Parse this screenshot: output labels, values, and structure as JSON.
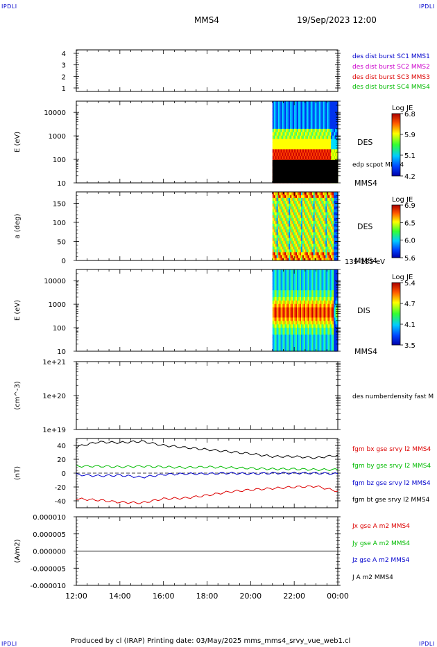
{
  "corners": {
    "tl": "IPDLI",
    "tr": "IPDLI",
    "bl": "IPDLI",
    "br": "IPDLI"
  },
  "header": {
    "spacecraft": "MMS4",
    "datetime": "19/Sep/2023 12:00"
  },
  "footer": {
    "text": "Produced by cl (IRAP)   Printing date: 03/May/2025   mms_mms4_srvy_vue_web1.cl"
  },
  "colors": {
    "red": "#dd0000",
    "green": "#00bb00",
    "blue": "#0000cc",
    "magenta": "#cc00cc",
    "black": "#000000"
  },
  "chart_data": [
    {
      "type": "line",
      "id": "availability",
      "yticks": [
        1,
        2,
        3,
        4
      ],
      "ylim": [
        0.7,
        4.3
      ],
      "legend": [
        {
          "text": "des dist burst SC1 MMS1",
          "color": "#0000cc"
        },
        {
          "text": "des dist burst SC2 MMS2",
          "color": "#cc00cc"
        },
        {
          "text": "des dist burst SC3 MMS3",
          "color": "#dd0000"
        },
        {
          "text": "des dist burst SC4 MMS4",
          "color": "#00bb00"
        }
      ]
    },
    {
      "type": "heatmap",
      "id": "des-energy",
      "ylabel": "E (eV)",
      "scale": "log",
      "yticks": [
        10,
        100,
        1000,
        10000
      ],
      "ytick_labels": [
        "10",
        "100",
        "1000",
        "10000"
      ],
      "ylim": [
        10,
        30000
      ],
      "data_start_hour": 21.0,
      "data_end_hour": 24.0,
      "label": "DES",
      "sublabel": "MMS4",
      "overlay_label": "edp scpot MMS4",
      "colorbar": {
        "title": "Log JE",
        "ticks": [
          "6.8",
          "5.9",
          "5.1",
          "4.2"
        ],
        "min": 4.2,
        "max": 6.8
      },
      "black_band_max_ev": 95
    },
    {
      "type": "heatmap",
      "id": "des-pitch",
      "ylabel": "a (deg)",
      "scale": "linear",
      "yticks": [
        0,
        50,
        100,
        150
      ],
      "ytick_labels": [
        "0",
        "50",
        "100",
        "150"
      ],
      "ylim": [
        0,
        180
      ],
      "data_start_hour": 21.0,
      "data_end_hour": 24.0,
      "label": "DES",
      "sublabel": "MMS4",
      "energy_range": "139-185 eV",
      "colorbar": {
        "title": "Log JE",
        "ticks": [
          "6.9",
          "6.5",
          "6.0",
          "5.6"
        ],
        "min": 5.6,
        "max": 6.9
      }
    },
    {
      "type": "heatmap",
      "id": "dis-energy",
      "ylabel": "E (eV)",
      "scale": "log",
      "yticks": [
        10,
        100,
        1000,
        10000
      ],
      "ytick_labels": [
        "10",
        "100",
        "1000",
        "10000"
      ],
      "ylim": [
        10,
        30000
      ],
      "data_start_hour": 21.0,
      "data_end_hour": 24.0,
      "label": "DIS",
      "sublabel": "MMS4",
      "colorbar": {
        "title": "Log JE",
        "ticks": [
          "5.4",
          "4.7",
          "4.1",
          "3.5"
        ],
        "min": 3.5,
        "max": 5.4
      }
    },
    {
      "type": "line",
      "id": "density",
      "ylabel": "(cm^-3)",
      "scale": "log",
      "yticks": [
        1e+19,
        1e+20,
        1e+21
      ],
      "ytick_labels": [
        "1e+19",
        "1e+20",
        "1e+21"
      ],
      "ylim": [
        1e+19,
        1e+21
      ],
      "legend": [
        {
          "text": "des numberdensity fast M",
          "color": "#000000"
        }
      ]
    },
    {
      "type": "line",
      "id": "fgm",
      "ylabel": "(nT)",
      "yticks": [
        -40,
        -20,
        0,
        20,
        40
      ],
      "ytick_labels": [
        "-40",
        "-20",
        "0",
        "20",
        "40"
      ],
      "ylim": [
        -50,
        50
      ],
      "legend": [
        {
          "text": "fgm bx gse srvy l2 MMS4",
          "color": "#dd0000"
        },
        {
          "text": "fgm by gse srvy l2 MMS4",
          "color": "#00bb00"
        },
        {
          "text": "fgm bz gse srvy l2 MMS4",
          "color": "#0000cc"
        },
        {
          "text": "fgm bt gse srvy l2 MMS4",
          "color": "#000000"
        }
      ],
      "x": [
        12,
        13,
        14,
        15,
        16,
        17,
        18,
        19,
        20,
        21,
        22,
        23,
        24
      ],
      "series": [
        {
          "key": "bt",
          "color": "#000000",
          "values": [
            38,
            45,
            44,
            46,
            40,
            37,
            34,
            31,
            28,
            24,
            24,
            22,
            26
          ]
        },
        {
          "key": "by",
          "color": "#00bb00",
          "values": [
            10,
            10,
            9,
            10,
            9,
            8,
            9,
            8,
            7,
            6,
            6,
            5,
            5
          ]
        },
        {
          "key": "bz",
          "color": "#0000cc",
          "values": [
            -2,
            -4,
            -3,
            -6,
            -2,
            -1,
            -1,
            0,
            -1,
            0,
            0,
            0,
            -1
          ]
        },
        {
          "key": "bx",
          "color": "#dd0000",
          "values": [
            -37,
            -39,
            -42,
            -43,
            -37,
            -36,
            -32,
            -27,
            -24,
            -22,
            -20,
            -19,
            -26
          ]
        }
      ]
    },
    {
      "type": "line",
      "id": "current",
      "ylabel": "(A/m2)",
      "yticks": [
        -1e-05,
        -5e-06,
        0,
        5e-06,
        1e-05
      ],
      "ytick_labels": [
        "-0.000010",
        "-0.000005",
        "0.000000",
        "0.000005",
        "0.000010"
      ],
      "ylim": [
        -1e-05,
        1e-05
      ],
      "legend": [
        {
          "text": "Jx gse A m2 MMS4",
          "color": "#dd0000"
        },
        {
          "text": "Jy gse A m2 MMS4",
          "color": "#00bb00"
        },
        {
          "text": "Jz gse A m2 MMS4",
          "color": "#0000cc"
        },
        {
          "text": "J A m2 MMS4",
          "color": "#000000"
        }
      ],
      "x": [
        12,
        24
      ],
      "series": [
        {
          "key": "j",
          "color": "#000000",
          "values": [
            0,
            0
          ]
        }
      ]
    }
  ],
  "xaxis": {
    "ticks": [
      12,
      14,
      16,
      18,
      20,
      22,
      24
    ],
    "tick_labels": [
      "12:00",
      "14:00",
      "16:00",
      "18:00",
      "20:00",
      "22:00",
      "00:00"
    ],
    "xlim": [
      12,
      24
    ]
  }
}
